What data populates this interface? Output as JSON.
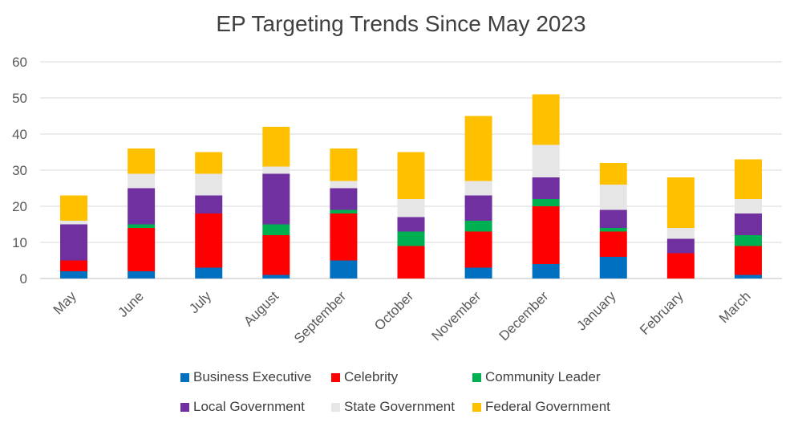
{
  "chart_data": {
    "type": "bar",
    "stacked": true,
    "title": "EP Targeting Trends Since May 2023",
    "xlabel": "",
    "ylabel": "",
    "ylim": [
      0,
      60
    ],
    "yticks": [
      0,
      10,
      20,
      30,
      40,
      50,
      60
    ],
    "grid": true,
    "legend_position": "bottom",
    "categories": [
      "May",
      "June",
      "July",
      "August",
      "September",
      "October",
      "November",
      "December",
      "January",
      "February",
      "March"
    ],
    "series": [
      {
        "name": "Business Executive",
        "color": "#0070c0",
        "values": [
          2,
          2,
          3,
          1,
          5,
          0,
          3,
          4,
          6,
          0,
          1
        ]
      },
      {
        "name": "Celebrity",
        "color": "#ff0000",
        "values": [
          3,
          12,
          15,
          11,
          13,
          9,
          10,
          16,
          7,
          7,
          8
        ]
      },
      {
        "name": "Community Leader",
        "color": "#00b050",
        "values": [
          0,
          1,
          0,
          3,
          1,
          4,
          3,
          2,
          1,
          0,
          3
        ]
      },
      {
        "name": "Local Government",
        "color": "#7030a0",
        "values": [
          10,
          10,
          5,
          14,
          6,
          4,
          7,
          6,
          5,
          4,
          6
        ]
      },
      {
        "name": "State Government",
        "color": "#e7e6e6",
        "values": [
          1,
          4,
          6,
          2,
          2,
          5,
          4,
          9,
          7,
          3,
          4
        ]
      },
      {
        "name": "Federal Government",
        "color": "#ffc000",
        "values": [
          7,
          7,
          6,
          11,
          9,
          13,
          18,
          14,
          6,
          14,
          11
        ]
      }
    ]
  }
}
